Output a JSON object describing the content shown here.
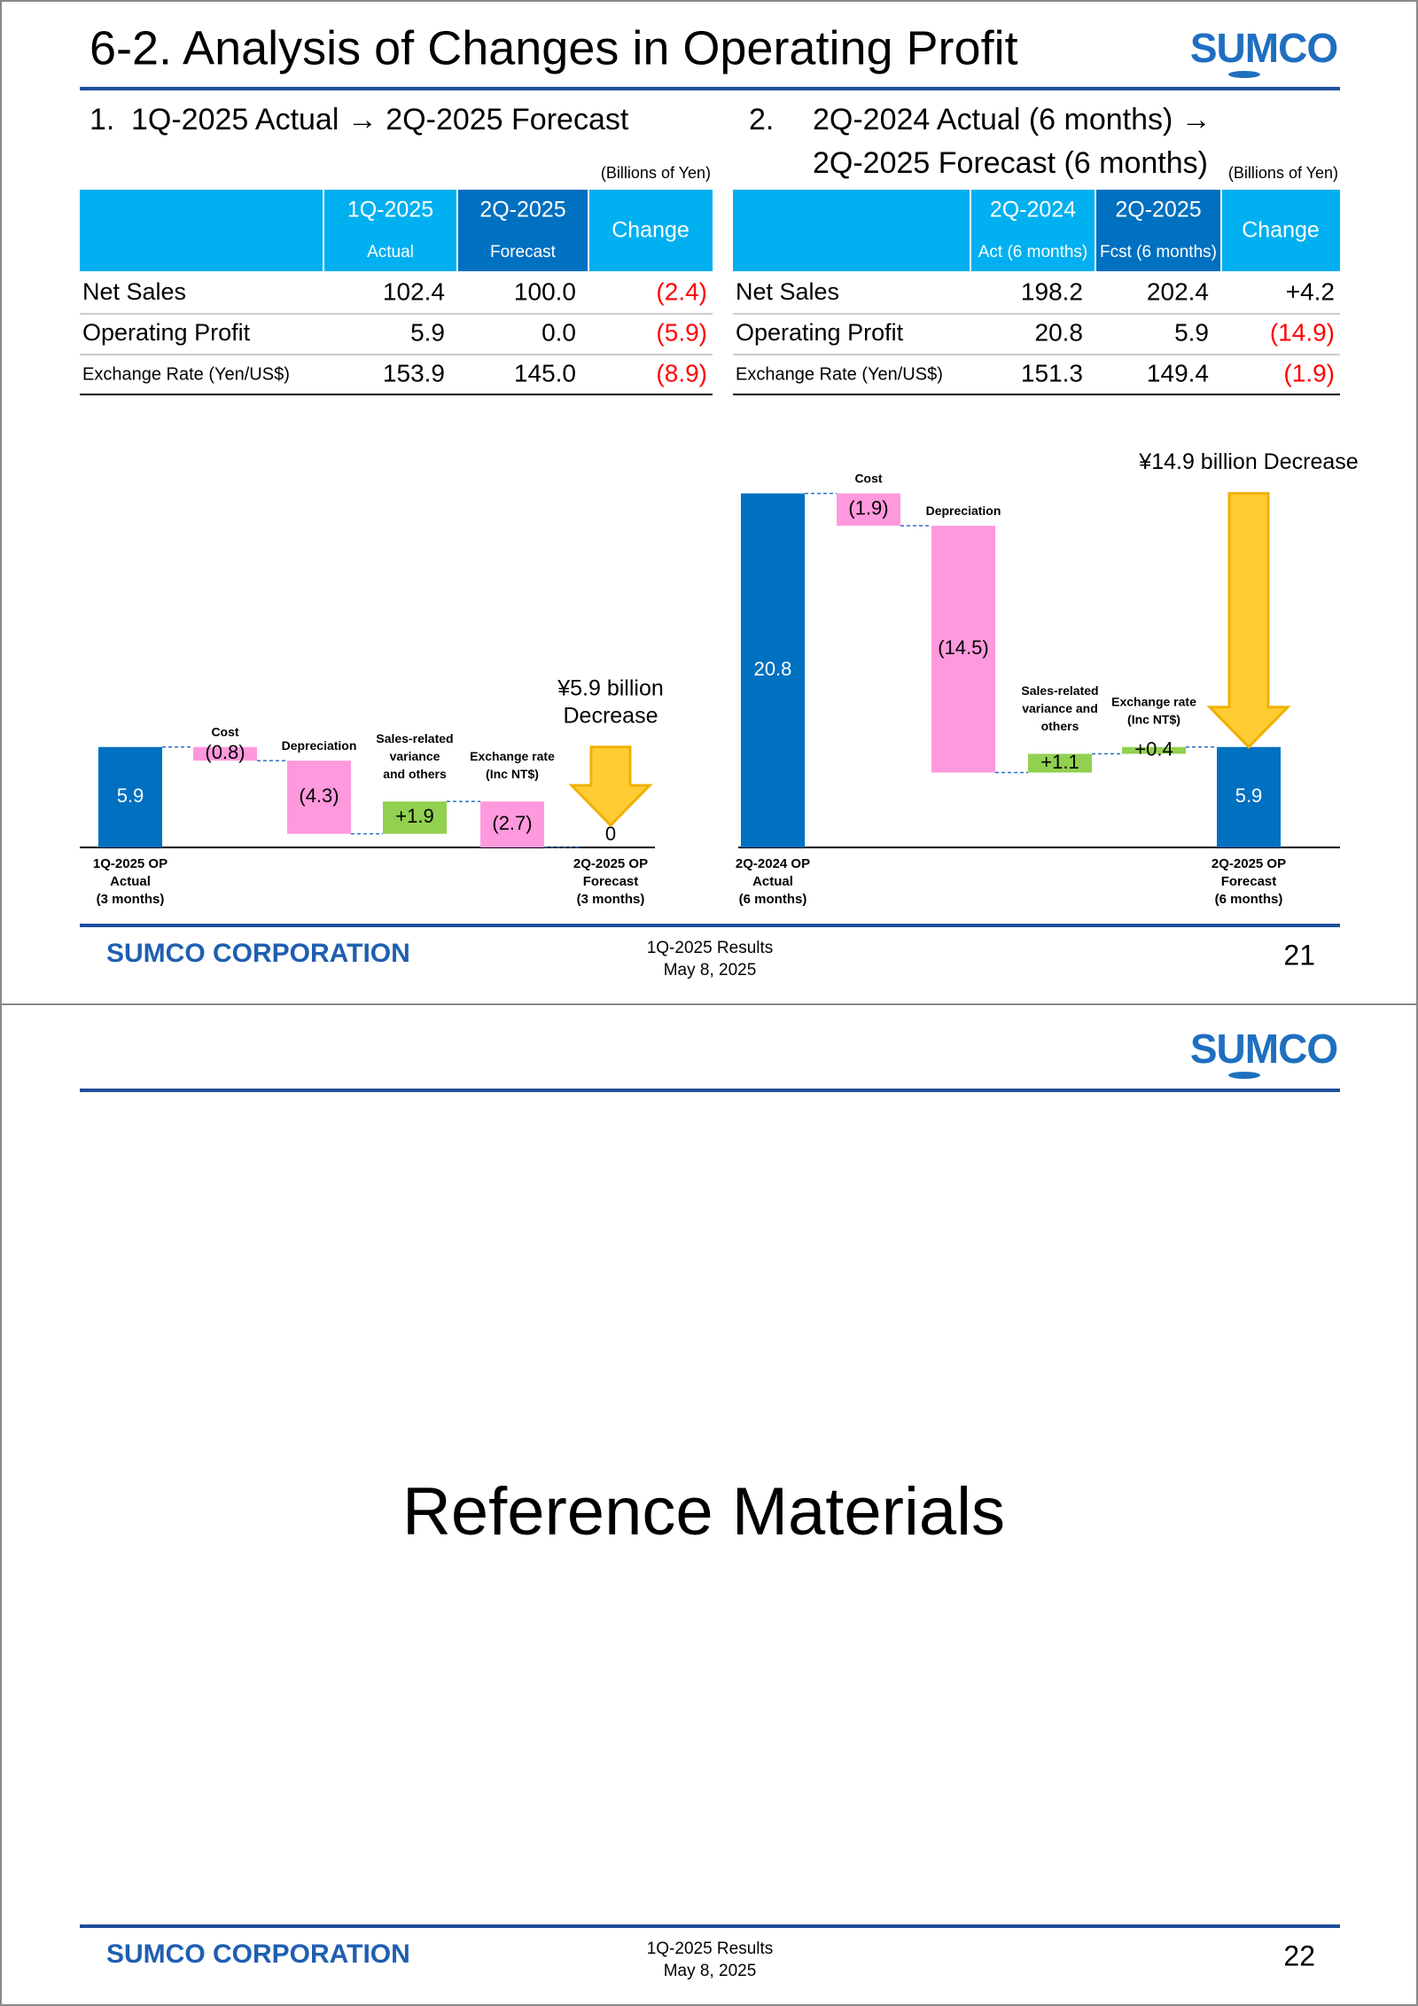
{
  "slides": [
    {
      "title": "6-2. Analysis of Changes in Operating Profit",
      "logo": "SUMCO",
      "sections": [
        {
          "number": "1.",
          "heading": [
            "1Q-2025 Actual → 2Q-2025 Forecast"
          ],
          "unit": "(Billions of Yen)",
          "table": {
            "header": [
              [
                "1Q-2025",
                "Actual"
              ],
              [
                "2Q-2025",
                "Forecast"
              ],
              [
                "Change"
              ]
            ],
            "rows": [
              [
                "Net Sales",
                "102.4",
                "100.0",
                "(2.4)"
              ],
              [
                "Operating Profit",
                "5.9",
                "0.0",
                "(5.9)"
              ],
              [
                "Exchange Rate (Yen/US$)",
                "153.9",
                "145.0",
                "(8.9)"
              ]
            ]
          },
          "waterfall": {
            "annotation": [
              "¥5.9 billion",
              "Decrease"
            ],
            "colors": {
              "total": "#0070c0",
              "decrease": "#ff99dd",
              "increase": "#92d050"
            },
            "steps": [
              {
                "label": [
                  "1Q-2025 OP",
                  "Actual",
                  "(3 months)"
                ],
                "kind": "total",
                "value": 5.9
              },
              {
                "label": [
                  "Cost"
                ],
                "kind": "step",
                "value": -0.8,
                "value_label": "(0.8)"
              },
              {
                "label": [
                  "Depreciation"
                ],
                "kind": "step",
                "value": -4.3,
                "value_label": "(4.3)"
              },
              {
                "label": [
                  "Sales-related",
                  "variance",
                  "and others"
                ],
                "kind": "step",
                "value": 1.9,
                "value_label": "+1.9"
              },
              {
                "label": [
                  "Exchange rate",
                  "(Inc NT$)"
                ],
                "kind": "step",
                "value": -2.7,
                "value_label": "(2.7)"
              },
              {
                "label": [
                  "2Q-2025 OP",
                  "Forecast",
                  "(3 months)"
                ],
                "kind": "total",
                "value": 0
              }
            ]
          }
        },
        {
          "number": "2.",
          "heading": [
            "2Q-2024 Actual (6 months) →",
            "2Q-2025 Forecast (6 months)"
          ],
          "unit": "(Billions of Yen)",
          "table": {
            "header": [
              [
                "2Q-2024",
                "Act (6 months)"
              ],
              [
                "2Q-2025",
                "Fcst (6 months)"
              ],
              [
                "Change"
              ]
            ],
            "rows": [
              [
                "Net Sales",
                "198.2",
                "202.4",
                "+4.2"
              ],
              [
                "Operating Profit",
                "20.8",
                "5.9",
                "(14.9)"
              ],
              [
                "Exchange Rate (Yen/US$)",
                "151.3",
                "149.4",
                "(1.9)"
              ]
            ]
          },
          "waterfall": {
            "annotation": [
              "¥14.9 billion Decrease"
            ],
            "colors": {
              "total": "#0070c0",
              "decrease": "#ff99dd",
              "increase": "#92d050"
            },
            "steps": [
              {
                "label": [
                  "2Q-2024 OP",
                  "Actual",
                  "(6 months)"
                ],
                "kind": "total",
                "value": 20.8
              },
              {
                "label": [
                  "Cost"
                ],
                "kind": "step",
                "value": -1.9,
                "value_label": "(1.9)"
              },
              {
                "label": [
                  "Depreciation"
                ],
                "kind": "step",
                "value": -14.5,
                "value_label": "(14.5)"
              },
              {
                "label": [
                  "Sales-related",
                  "variance and",
                  "others"
                ],
                "kind": "step",
                "value": 1.1,
                "value_label": "+1.1"
              },
              {
                "label": [
                  "Exchange rate",
                  "(Inc NT$)"
                ],
                "kind": "step",
                "value": 0.4,
                "value_label": "+0.4"
              },
              {
                "label": [
                  "2Q-2025 OP",
                  "Forecast",
                  "(6 months)"
                ],
                "kind": "total",
                "value": 5.9
              }
            ]
          }
        }
      ],
      "footer": {
        "company": "SUMCO CORPORATION",
        "event": [
          "1Q-2025 Results",
          "May 8, 2025"
        ],
        "page": "21"
      }
    },
    {
      "logo": "SUMCO",
      "title": "Reference Materials",
      "footer": {
        "company": "SUMCO CORPORATION",
        "event": [
          "1Q-2025 Results",
          "May 8, 2025"
        ],
        "page": "22"
      }
    }
  ]
}
